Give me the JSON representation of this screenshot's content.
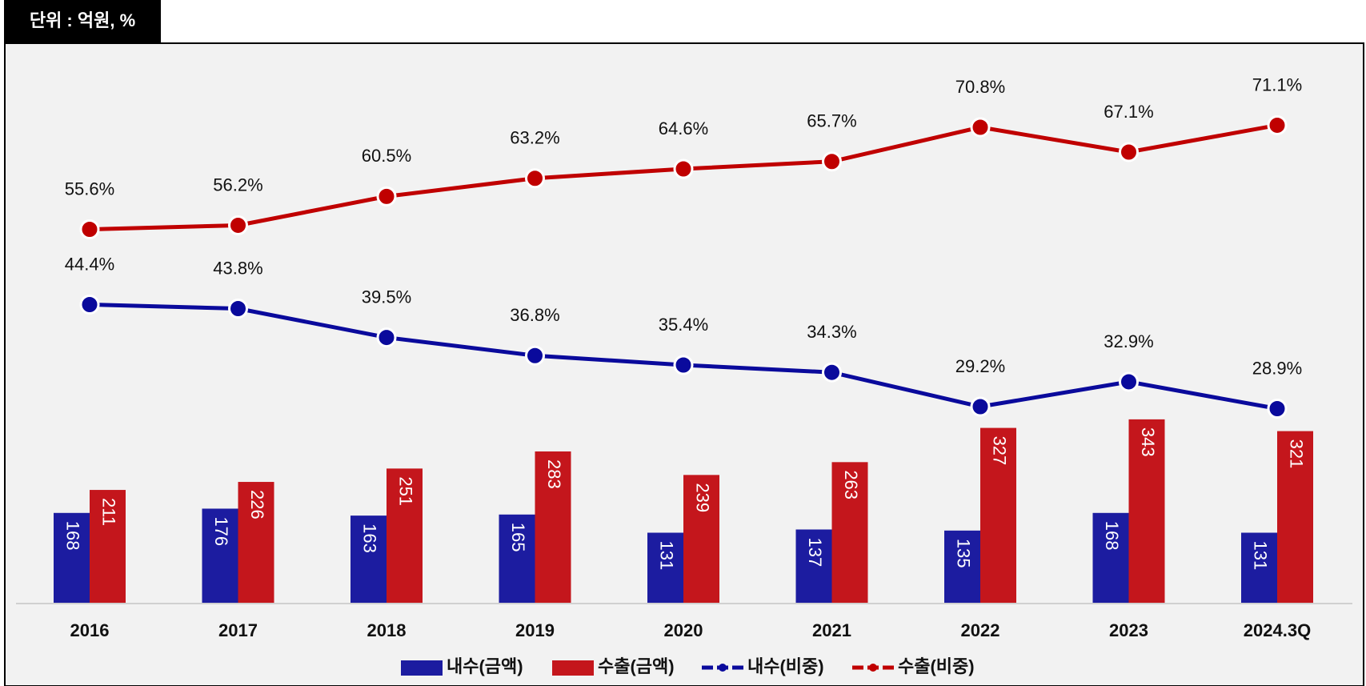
{
  "chart_data": {
    "type": "bar",
    "annotation": "단위 : 억원, %",
    "categories": [
      "2016",
      "2017",
      "2018",
      "2019",
      "2020",
      "2021",
      "2022",
      "2023",
      "2024.3Q"
    ],
    "ylim": [
      0,
      1030
    ],
    "y2lim": [
      0,
      82
    ],
    "series": [
      {
        "name": "내수(금액)",
        "type": "bar",
        "color": "#1c1ca0",
        "values": [
          168,
          176,
          163,
          165,
          131,
          137,
          135,
          168,
          131
        ]
      },
      {
        "name": "수출(금액)",
        "type": "bar",
        "color": "#c4161c",
        "values": [
          211,
          226,
          251,
          283,
          239,
          263,
          327,
          343,
          321
        ]
      },
      {
        "name": "내수(비중)",
        "type": "line",
        "axis": "y2",
        "color": "#0a0a9c",
        "values": [
          44.4,
          43.8,
          39.5,
          36.8,
          35.4,
          34.3,
          29.2,
          32.9,
          28.9
        ],
        "value_labels": [
          "44.4%",
          "43.8%",
          "39.5%",
          "36.8%",
          "35.4%",
          "34.3%",
          "29.2%",
          "32.9%",
          "28.9%"
        ]
      },
      {
        "name": "수출(비중)",
        "type": "line",
        "axis": "y2",
        "color": "#c00000",
        "values": [
          55.6,
          56.2,
          60.5,
          63.2,
          64.6,
          65.7,
          70.8,
          67.1,
          71.1
        ],
        "value_labels": [
          "55.6%",
          "56.2%",
          "60.5%",
          "63.2%",
          "64.6%",
          "65.7%",
          "70.8%",
          "67.1%",
          "71.1%"
        ]
      }
    ]
  }
}
